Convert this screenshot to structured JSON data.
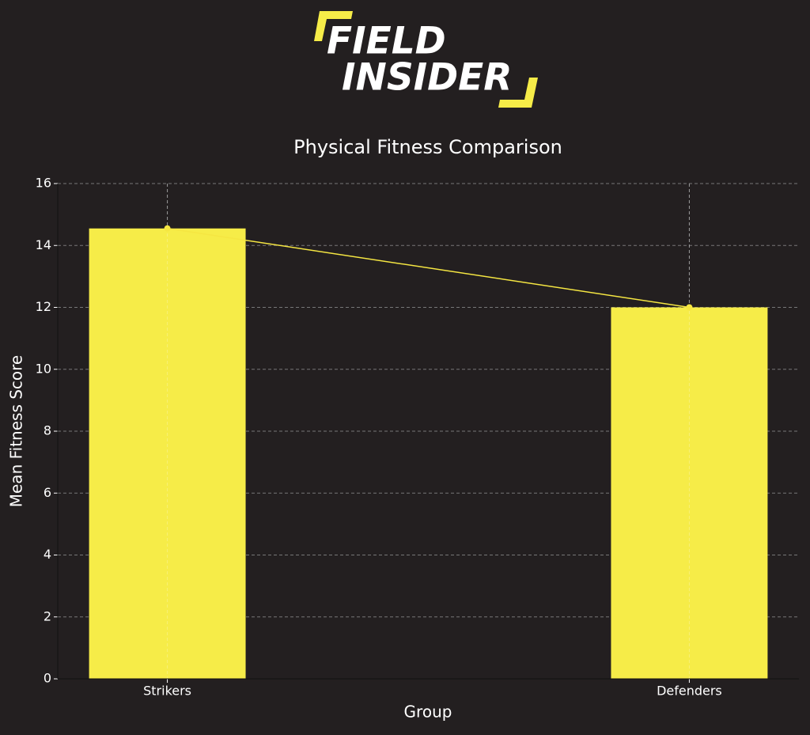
{
  "logo": {
    "line1": "FIELD",
    "line2": "INSIDER"
  },
  "chart_data": {
    "type": "bar",
    "title": "Physical Fitness Comparison",
    "x_label": "Group",
    "y_label": "Mean Fitness Score",
    "categories": [
      "Strikers",
      "Defenders"
    ],
    "values": [
      14.55,
      12.0
    ],
    "color": "#f6ec48",
    "line": true,
    "line_color": "#f5e642",
    "ylim": [
      0,
      16
    ],
    "yticks": [
      0,
      2,
      4,
      6,
      8,
      10,
      12,
      14,
      16
    ],
    "grid": true
  }
}
